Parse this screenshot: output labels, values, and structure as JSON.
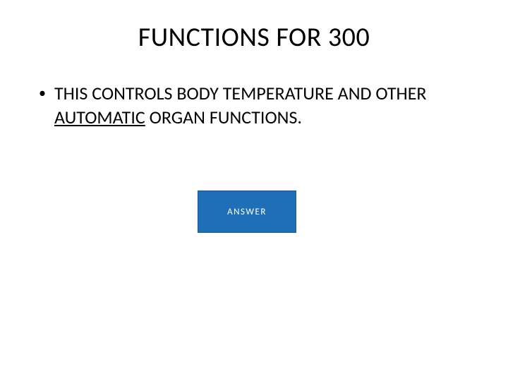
{
  "slide": {
    "title": "FUNCTIONS FOR 300",
    "bullet_text_part1": "THIS CONTROLS BODY TEMPERATURE AND OTHER ",
    "bullet_text_underlined": "AUTOMATIC",
    "bullet_text_part2": " ORGAN FUNCTIONS.",
    "answer_button_label": "ANSWER",
    "background_color": "#ffffff",
    "text_color": "#000000",
    "button_color": "#1f6fb8",
    "button_text_color": "#ffffff",
    "title_fontsize": 38,
    "body_fontsize": 26,
    "button_fontsize": 13
  }
}
